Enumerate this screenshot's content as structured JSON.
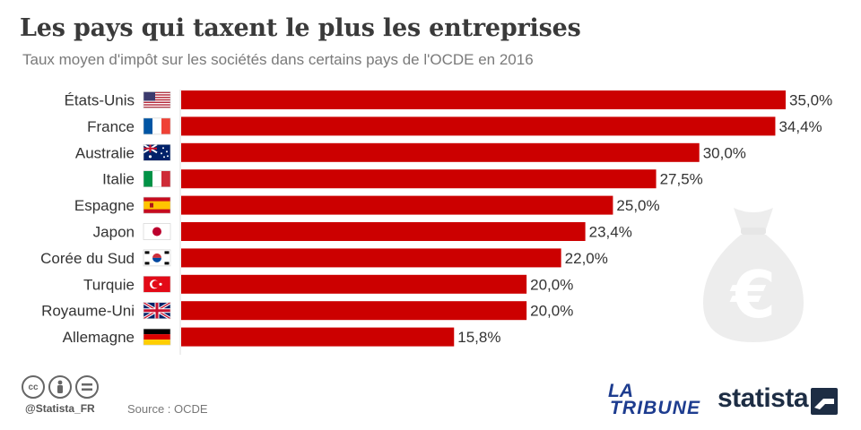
{
  "header": {
    "title": "Les pays qui taxent le plus les entreprises",
    "subtitle": "Taux moyen d'impôt sur les sociétés dans certains pays de l'OCDE en 2016"
  },
  "chart_data": {
    "type": "bar",
    "orientation": "horizontal",
    "title": "Les pays qui taxent le plus les entreprises",
    "subtitle": "Taux moyen d'impôt sur les sociétés dans certains pays de l'OCDE en 2016",
    "categories": [
      "États-Unis",
      "France",
      "Australie",
      "Italie",
      "Espagne",
      "Japon",
      "Corée du Sud",
      "Turquie",
      "Royaume-Uni",
      "Allemagne"
    ],
    "values": [
      35.0,
      34.4,
      30.0,
      27.5,
      25.0,
      23.4,
      22.0,
      20.0,
      20.0,
      15.8
    ],
    "value_labels": [
      "35,0%",
      "34,4%",
      "30,0%",
      "27,5%",
      "25,0%",
      "23,4%",
      "22,0%",
      "20,0%",
      "20,0%",
      "15,8%"
    ],
    "flags": [
      "flag-us-icon",
      "flag-fr-icon",
      "flag-au-icon",
      "flag-it-icon",
      "flag-es-icon",
      "flag-jp-icon",
      "flag-kr-icon",
      "flag-tr-icon",
      "flag-gb-icon",
      "flag-de-icon"
    ],
    "bar_color": "#cc0000",
    "xlim": [
      0,
      35
    ],
    "grid": false,
    "xlabel": "",
    "ylabel": ""
  },
  "footer": {
    "handle": "@Statista_FR",
    "source": "Source : OCDE",
    "license_icons": [
      "cc-icon",
      "attribution-icon",
      "no-derivatives-icon"
    ],
    "brand_primary": "LA TRIBUNE",
    "brand_secondary": "statista"
  },
  "colors": {
    "bar": "#cc0000",
    "title": "#3a3a3a",
    "subtitle": "#7a7a7a",
    "statista": "#1d2d44",
    "tribune": "#1d3c8f"
  }
}
